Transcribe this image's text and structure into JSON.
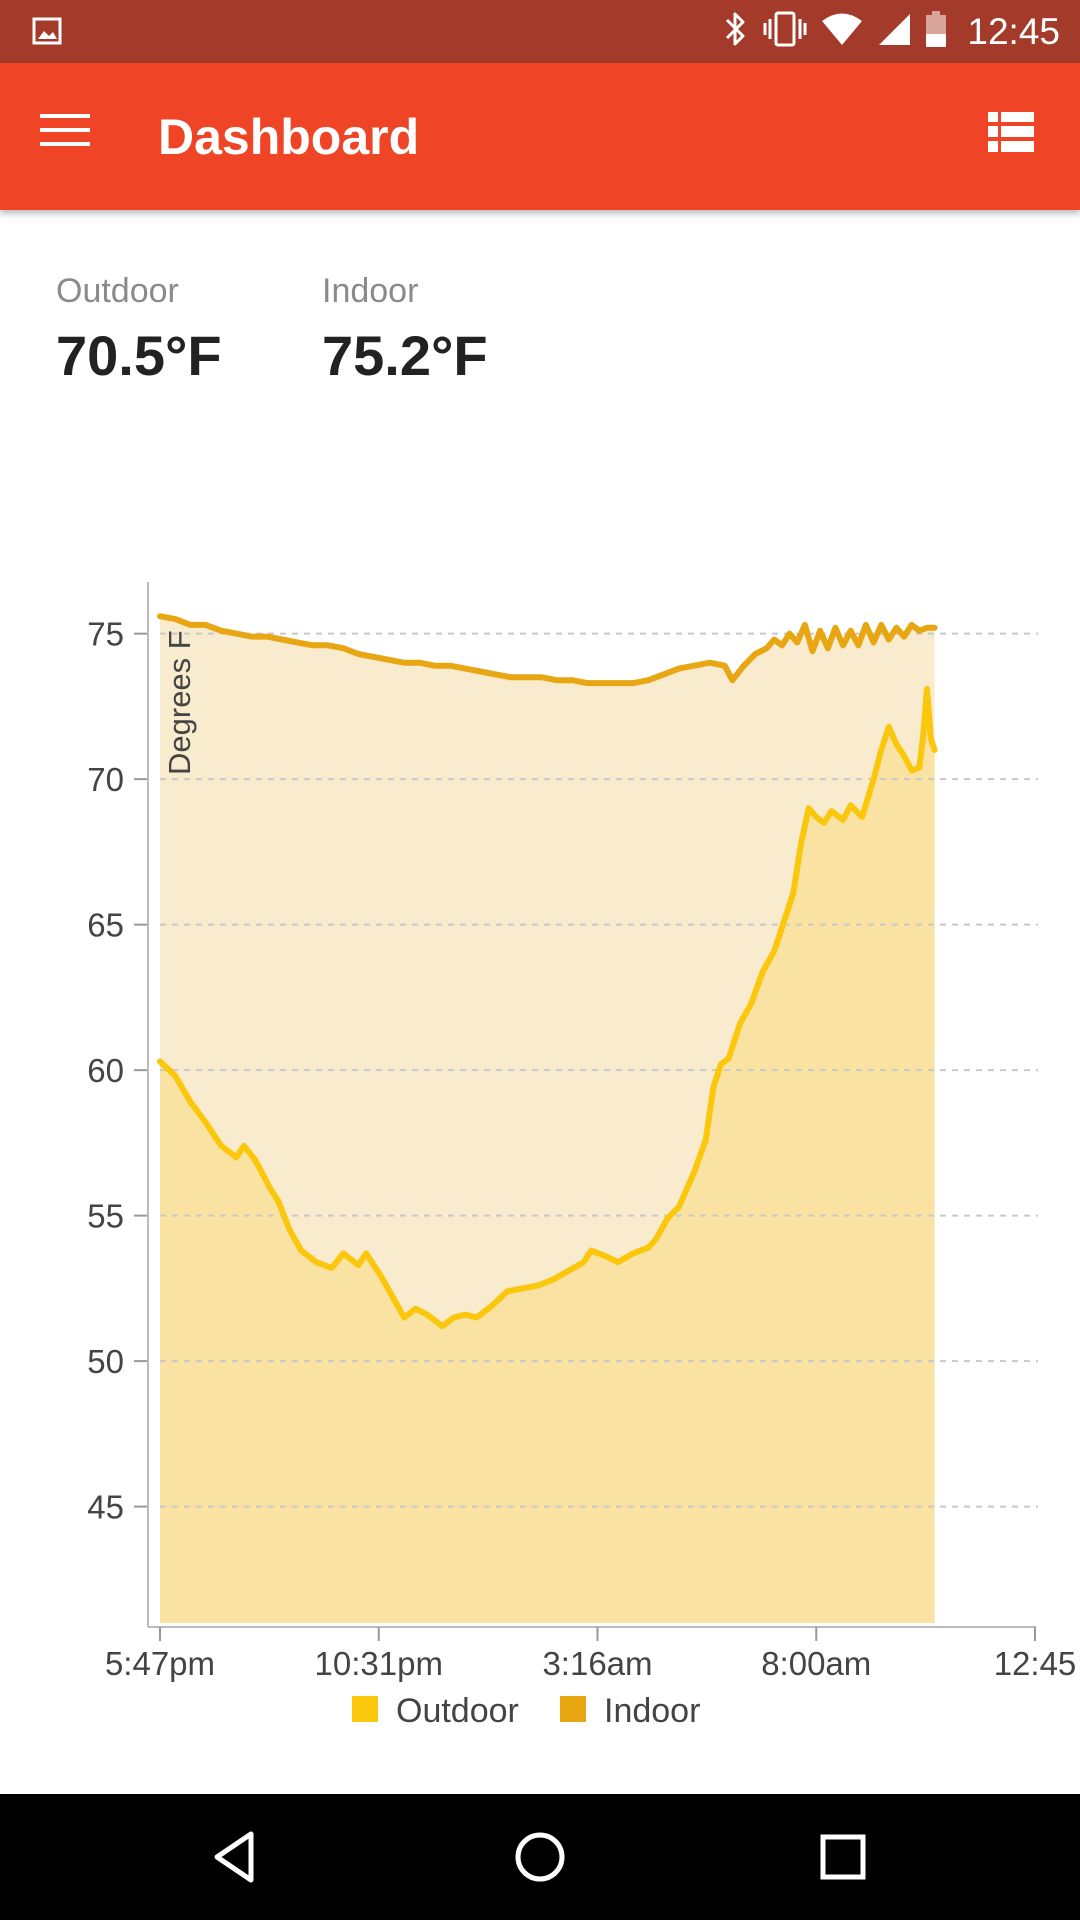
{
  "status_bar": {
    "time": "12:45",
    "icons": [
      "image-icon",
      "bluetooth-icon",
      "vibrate-icon",
      "wifi-icon",
      "signal-icon",
      "battery-icon"
    ]
  },
  "app_bar": {
    "title": "Dashboard",
    "menu_icon": "menu-icon",
    "action_icon": "list-view-icon"
  },
  "readings": [
    {
      "label": "Outdoor",
      "value": "70.5°F"
    },
    {
      "label": "Indoor",
      "value": "75.2°F"
    }
  ],
  "chart_data": {
    "type": "area",
    "ylabel": "Degrees F",
    "xlabel": "",
    "ylim": [
      41,
      76.5
    ],
    "yticks": [
      45,
      50,
      55,
      60,
      65,
      70,
      75
    ],
    "xticks": [
      "5:47pm",
      "10:31pm",
      "3:16am",
      "8:00am",
      "12:45"
    ],
    "x_range": [
      0,
      1140
    ],
    "grid": true,
    "legend_position": "bottom",
    "series": [
      {
        "name": "Outdoor",
        "color": "#fbc70c",
        "points": [
          [
            0,
            60.3
          ],
          [
            20,
            59.8
          ],
          [
            40,
            58.9
          ],
          [
            60,
            58.2
          ],
          [
            80,
            57.4
          ],
          [
            100,
            57.0
          ],
          [
            110,
            57.4
          ],
          [
            125,
            56.9
          ],
          [
            145,
            55.9
          ],
          [
            155,
            55.5
          ],
          [
            170,
            54.5
          ],
          [
            185,
            53.8
          ],
          [
            205,
            53.4
          ],
          [
            225,
            53.2
          ],
          [
            240,
            53.7
          ],
          [
            260,
            53.3
          ],
          [
            270,
            53.7
          ],
          [
            290,
            52.9
          ],
          [
            305,
            52.2
          ],
          [
            320,
            51.5
          ],
          [
            335,
            51.8
          ],
          [
            350,
            51.6
          ],
          [
            370,
            51.2
          ],
          [
            385,
            51.5
          ],
          [
            400,
            51.6
          ],
          [
            415,
            51.5
          ],
          [
            435,
            51.9
          ],
          [
            455,
            52.4
          ],
          [
            475,
            52.5
          ],
          [
            495,
            52.6
          ],
          [
            515,
            52.8
          ],
          [
            535,
            53.1
          ],
          [
            555,
            53.4
          ],
          [
            565,
            53.8
          ],
          [
            585,
            53.6
          ],
          [
            600,
            53.4
          ],
          [
            620,
            53.7
          ],
          [
            640,
            53.9
          ],
          [
            650,
            54.2
          ],
          [
            665,
            54.9
          ],
          [
            680,
            55.3
          ],
          [
            700,
            56.5
          ],
          [
            715,
            57.6
          ],
          [
            725,
            59.4
          ],
          [
            735,
            60.2
          ],
          [
            745,
            60.4
          ],
          [
            760,
            61.6
          ],
          [
            775,
            62.3
          ],
          [
            790,
            63.4
          ],
          [
            805,
            64.1
          ],
          [
            820,
            65.3
          ],
          [
            830,
            66.1
          ],
          [
            840,
            67.8
          ],
          [
            850,
            69.0
          ],
          [
            860,
            68.7
          ],
          [
            870,
            68.5
          ],
          [
            880,
            68.9
          ],
          [
            895,
            68.6
          ],
          [
            905,
            69.1
          ],
          [
            920,
            68.7
          ],
          [
            935,
            70.0
          ],
          [
            945,
            71.0
          ],
          [
            955,
            71.8
          ],
          [
            965,
            71.2
          ],
          [
            975,
            70.8
          ],
          [
            985,
            70.3
          ],
          [
            995,
            70.4
          ],
          [
            1000,
            71.5
          ],
          [
            1005,
            73.1
          ],
          [
            1010,
            71.4
          ],
          [
            1015,
            71.0
          ]
        ]
      },
      {
        "name": "Indoor",
        "color": "#e8a612",
        "points": [
          [
            0,
            75.6
          ],
          [
            20,
            75.5
          ],
          [
            40,
            75.3
          ],
          [
            60,
            75.3
          ],
          [
            80,
            75.1
          ],
          [
            100,
            75.0
          ],
          [
            120,
            74.9
          ],
          [
            140,
            74.9
          ],
          [
            160,
            74.8
          ],
          [
            180,
            74.7
          ],
          [
            200,
            74.6
          ],
          [
            220,
            74.6
          ],
          [
            240,
            74.5
          ],
          [
            260,
            74.3
          ],
          [
            280,
            74.2
          ],
          [
            300,
            74.1
          ],
          [
            320,
            74.0
          ],
          [
            340,
            74.0
          ],
          [
            360,
            73.9
          ],
          [
            380,
            73.9
          ],
          [
            400,
            73.8
          ],
          [
            420,
            73.7
          ],
          [
            440,
            73.6
          ],
          [
            460,
            73.5
          ],
          [
            480,
            73.5
          ],
          [
            500,
            73.5
          ],
          [
            520,
            73.4
          ],
          [
            540,
            73.4
          ],
          [
            560,
            73.3
          ],
          [
            580,
            73.3
          ],
          [
            600,
            73.3
          ],
          [
            620,
            73.3
          ],
          [
            640,
            73.4
          ],
          [
            660,
            73.6
          ],
          [
            680,
            73.8
          ],
          [
            700,
            73.9
          ],
          [
            720,
            74.0
          ],
          [
            740,
            73.9
          ],
          [
            750,
            73.4
          ],
          [
            765,
            73.9
          ],
          [
            780,
            74.3
          ],
          [
            795,
            74.5
          ],
          [
            805,
            74.8
          ],
          [
            815,
            74.6
          ],
          [
            825,
            75.0
          ],
          [
            835,
            74.7
          ],
          [
            845,
            75.3
          ],
          [
            855,
            74.4
          ],
          [
            865,
            75.1
          ],
          [
            875,
            74.5
          ],
          [
            885,
            75.2
          ],
          [
            895,
            74.6
          ],
          [
            905,
            75.1
          ],
          [
            915,
            74.6
          ],
          [
            925,
            75.3
          ],
          [
            935,
            74.7
          ],
          [
            945,
            75.3
          ],
          [
            955,
            74.8
          ],
          [
            965,
            75.2
          ],
          [
            975,
            74.9
          ],
          [
            985,
            75.3
          ],
          [
            995,
            75.1
          ],
          [
            1005,
            75.2
          ],
          [
            1015,
            75.2
          ]
        ]
      }
    ]
  }
}
